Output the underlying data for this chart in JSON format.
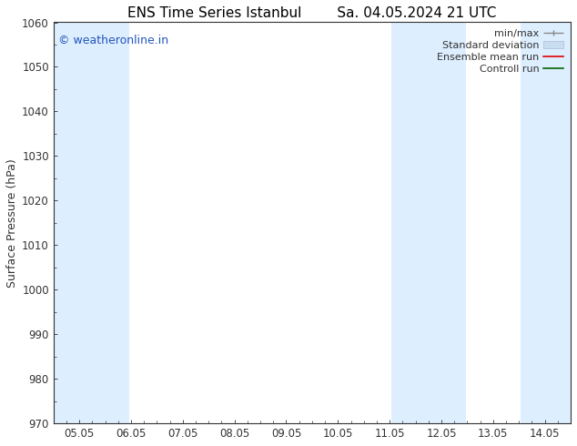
{
  "title_left": "ENS Time Series Istanbul",
  "title_right": "Sa. 04.05.2024 21 UTC",
  "ylabel": "Surface Pressure (hPa)",
  "ylim": [
    970,
    1060
  ],
  "yticks": [
    970,
    980,
    990,
    1000,
    1010,
    1020,
    1030,
    1040,
    1050,
    1060
  ],
  "xlim_start": -0.5,
  "xlim_end": 9.5,
  "xtick_labels": [
    "05.05",
    "06.05",
    "07.05",
    "08.05",
    "09.05",
    "10.05",
    "11.05",
    "12.05",
    "13.05",
    "14.05"
  ],
  "xtick_positions": [
    0,
    1,
    2,
    3,
    4,
    5,
    6,
    7,
    8,
    9
  ],
  "shaded_bands": [
    {
      "x_start": -0.5,
      "x_end": 0.97
    },
    {
      "x_start": 6.03,
      "x_end": 7.47
    },
    {
      "x_start": 8.53,
      "x_end": 9.5
    }
  ],
  "shade_color": "#ddeeff",
  "watermark_text": "© weatheronline.in",
  "watermark_color": "#2255bb",
  "legend_items": [
    {
      "label": "min/max",
      "type": "errorbar",
      "color": "#999999"
    },
    {
      "label": "Standard deviation",
      "type": "fill",
      "color": "#c8ddf0"
    },
    {
      "label": "Ensemble mean run",
      "type": "line",
      "color": "#dd0000"
    },
    {
      "label": "Controll run",
      "type": "line",
      "color": "#006600"
    }
  ],
  "spine_color": "#333333",
  "tick_color": "#333333",
  "font_size_title": 11,
  "font_size_axis": 9,
  "font_size_tick": 8.5,
  "font_size_legend": 8,
  "font_size_watermark": 9,
  "bg_color": "#ffffff"
}
